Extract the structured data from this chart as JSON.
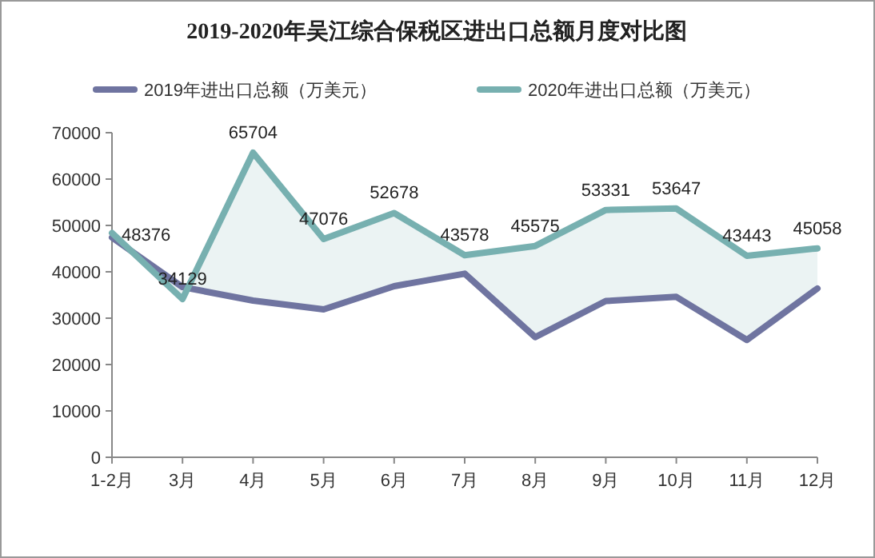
{
  "chart_data": {
    "type": "line",
    "title": "2019-2020年吴江综合保税区进出口总额月度对比图",
    "categories": [
      "1-2月",
      "3月",
      "4月",
      "5月",
      "6月",
      "7月",
      "8月",
      "9月",
      "10月",
      "11月",
      "12月"
    ],
    "series": [
      {
        "name": "2019年进出口总额（万美元）",
        "color": "#6f74a0",
        "values": [
          47400,
          36700,
          33800,
          31900,
          36900,
          39600,
          25900,
          33700,
          34600,
          25300,
          36400
        ]
      },
      {
        "name": "2020年进出口总额（万美元）",
        "color": "#77b0b0",
        "values": [
          48376,
          34129,
          65704,
          47076,
          52678,
          43578,
          45575,
          53331,
          53647,
          43443,
          45058
        ],
        "value_labels": [
          "48376",
          "34129",
          "65704",
          "47076",
          "52678",
          "43578",
          "45575",
          "53331",
          "53647",
          "43443",
          "45058"
        ],
        "lower": [
          47400,
          36700,
          33800,
          31900,
          36900,
          39600,
          25900,
          33700,
          34600,
          25300,
          36400
        ],
        "upper": [
          48376,
          34129,
          65704,
          47076,
          52678,
          43578,
          45575,
          53331,
          53647,
          43443,
          45058
        ]
      }
    ],
    "ylim": [
      0,
      70000
    ],
    "yticks": [
      0,
      10000,
      20000,
      30000,
      40000,
      50000,
      60000,
      70000
    ],
    "legend": "top",
    "grid": false
  }
}
